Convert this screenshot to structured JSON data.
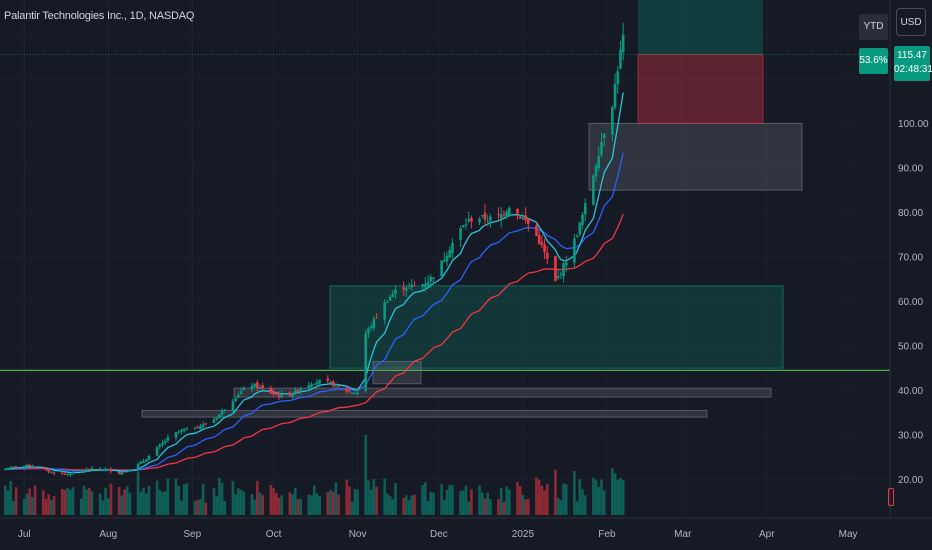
{
  "header": {
    "symbol_title": "Palantir Technologies Inc., 1D, NASDAQ"
  },
  "badges": {
    "ytd_label": "YTD %",
    "ytd_value": "53.6%",
    "currency": "USD"
  },
  "last_price": {
    "price": "115.47",
    "countdown": "02:48:31"
  },
  "colors": {
    "background": "#161a25",
    "up": "#089981",
    "down": "#f23645",
    "ema_fast": "#26c6da",
    "ema_mid": "#2962ff",
    "ma_slow": "#f23645",
    "support_line": "#4caf50"
  },
  "chart_data": {
    "type": "candlestick",
    "title": "Palantir Technologies Inc., 1D, NASDAQ",
    "timeframe": "1D",
    "ylim": [
      14,
      125
    ],
    "y_ticks": [
      "100.00",
      "90.00",
      "80.00",
      "70.00",
      "60.00",
      "50.00",
      "40.00",
      "30.00",
      "20.00"
    ],
    "x_ticks": [
      "Jul",
      "Aug",
      "Sep",
      "Oct",
      "Nov",
      "Dec",
      "2025",
      "Feb",
      "Mar",
      "Apr",
      "May"
    ],
    "monthly_closes": [
      {
        "month": "Jul",
        "close": 27
      },
      {
        "month": "Aug",
        "close": 31
      },
      {
        "month": "Sep",
        "close": 37
      },
      {
        "month": "Oct",
        "close": 41.5
      },
      {
        "month": "Nov",
        "close": 67
      },
      {
        "month": "Dec",
        "close": 75.6
      },
      {
        "month": "Jan",
        "close": 82
      },
      {
        "month": "Feb",
        "close": 115.47
      }
    ],
    "key_points": [
      {
        "date": "Jun 2024",
        "price": 23
      },
      {
        "date": "Aug 05 2024",
        "price": 21.5
      },
      {
        "date": "Sep 23 2024",
        "price": 40
      },
      {
        "date": "Nov 01 2024",
        "price": 41
      },
      {
        "date": "Nov 04 2024",
        "price": 54
      },
      {
        "date": "Dec 27 2024",
        "price": 84
      },
      {
        "date": "Jan 13 2025",
        "price": 64
      },
      {
        "date": "Feb 03 2025",
        "price": 101
      },
      {
        "date": "Feb 07 2025",
        "price": 117
      }
    ],
    "horizontal_line": {
      "price": 44.5
    },
    "zones": [
      {
        "from": "Oct 2024",
        "to": "Mar 2025",
        "low": 45,
        "high": 63.5,
        "kind": "demand"
      },
      {
        "from": "Jan 2025",
        "to": "Mar 2025",
        "low": 85,
        "high": 100,
        "kind": "neutral"
      },
      {
        "from": "Oct 2024",
        "to": "Nov 2024",
        "low": 41.5,
        "high": 46.5,
        "kind": "neutral"
      },
      {
        "from": "Aug 2024",
        "to": "Mar 2025",
        "low": 38.5,
        "high": 40.5,
        "kind": "neutral"
      },
      {
        "from": "Aug 2024",
        "to": "Mar 2025",
        "low": 34,
        "high": 35.5,
        "kind": "neutral"
      }
    ],
    "position": {
      "entry": 115.47,
      "target_top": 132,
      "stop": 100,
      "from": "Feb 2025",
      "to": "Mar 2025"
    },
    "moving_averages": [
      "EMA fast",
      "EMA mid",
      "MA slow"
    ],
    "volume_pane": true,
    "grid": true
  }
}
